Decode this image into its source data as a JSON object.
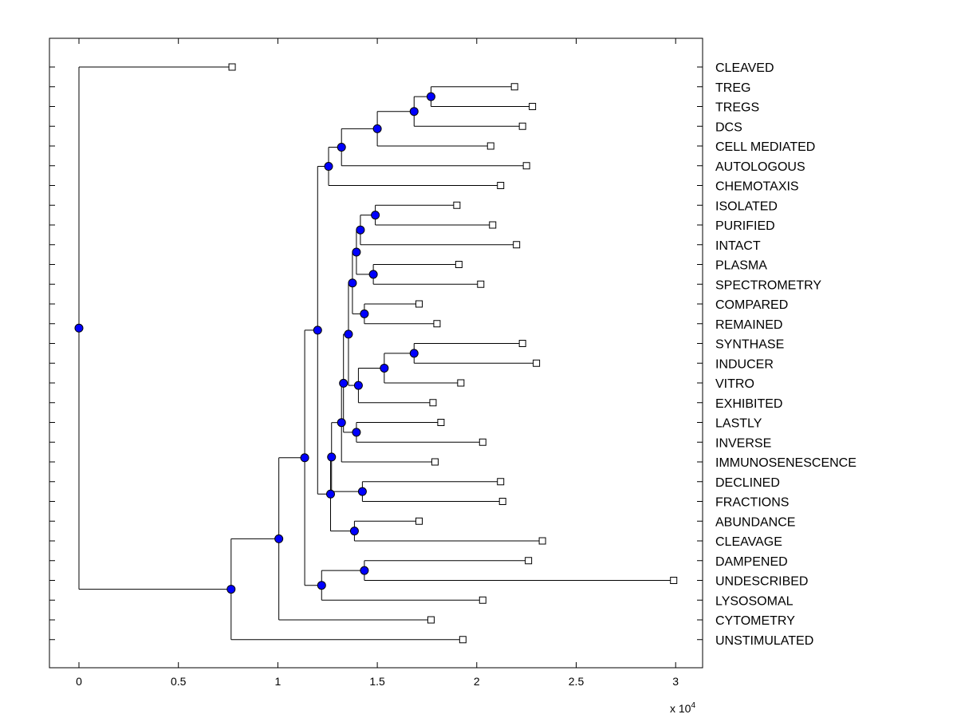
{
  "chart_data": {
    "type": "dendrogram",
    "title": "",
    "xlabel": "",
    "ylabel": "",
    "x_exponent_label": "x 10",
    "x_exponent_power": "4",
    "xlim": [
      -0.15,
      3.15
    ],
    "xticks": [
      0,
      0.5,
      1,
      1.5,
      2,
      2.5,
      3
    ],
    "xtick_labels": [
      "0",
      "0.5",
      "1",
      "1.5",
      "2",
      "2.5",
      "3"
    ],
    "colors": {
      "node": "#0000ff",
      "leaf_fill": "#ffffff",
      "line": "#000000"
    },
    "leaves": [
      {
        "label": "CLEAVED",
        "x": 0.77
      },
      {
        "label": "TREG",
        "x": 2.19
      },
      {
        "label": "TREGS",
        "x": 2.28
      },
      {
        "label": "DCS",
        "x": 2.23
      },
      {
        "label": "CELL MEDIATED",
        "x": 2.07
      },
      {
        "label": "AUTOLOGOUS",
        "x": 2.25
      },
      {
        "label": "CHEMOTAXIS",
        "x": 2.12
      },
      {
        "label": "ISOLATED",
        "x": 1.9
      },
      {
        "label": "PURIFIED",
        "x": 2.08
      },
      {
        "label": "INTACT",
        "x": 2.2
      },
      {
        "label": "PLASMA",
        "x": 1.91
      },
      {
        "label": "SPECTROMETRY",
        "x": 2.02
      },
      {
        "label": "COMPARED",
        "x": 1.71
      },
      {
        "label": "REMAINED",
        "x": 1.8
      },
      {
        "label": "SYNTHASE",
        "x": 2.23
      },
      {
        "label": "INDUCER",
        "x": 2.3
      },
      {
        "label": "VITRO",
        "x": 1.92
      },
      {
        "label": "EXHIBITED",
        "x": 1.78
      },
      {
        "label": "LASTLY",
        "x": 1.82
      },
      {
        "label": "INVERSE",
        "x": 2.03
      },
      {
        "label": "IMMUNOSENESCENCE",
        "x": 1.79
      },
      {
        "label": "DECLINED",
        "x": 2.12
      },
      {
        "label": "FRACTIONS",
        "x": 2.13
      },
      {
        "label": "ABUNDANCE",
        "x": 1.71
      },
      {
        "label": "CLEAVAGE",
        "x": 2.33
      },
      {
        "label": "DAMPENED",
        "x": 2.26
      },
      {
        "label": "UNDESCRIBED",
        "x": 2.99
      },
      {
        "label": "LYSOSOMAL",
        "x": 2.03
      },
      {
        "label": "CYTOMETRY",
        "x": 1.77
      },
      {
        "label": "UNSTIMULATED",
        "x": 1.93
      }
    ],
    "merges": [
      {
        "id": "n1",
        "x": 1.77,
        "children": [
          "L1",
          "L2"
        ]
      },
      {
        "id": "n2",
        "x": 1.685,
        "children": [
          "n1",
          "L3"
        ]
      },
      {
        "id": "n3",
        "x": 1.5,
        "children": [
          "n2",
          "L4"
        ]
      },
      {
        "id": "n4",
        "x": 1.32,
        "children": [
          "n3",
          "L5"
        ]
      },
      {
        "id": "n5",
        "x": 1.255,
        "children": [
          "n4",
          "L6"
        ]
      },
      {
        "id": "n6",
        "x": 1.49,
        "children": [
          "L7",
          "L8"
        ]
      },
      {
        "id": "n7",
        "x": 1.415,
        "children": [
          "n6",
          "L9"
        ]
      },
      {
        "id": "n8",
        "x": 1.48,
        "children": [
          "L10",
          "L11"
        ]
      },
      {
        "id": "n9",
        "x": 1.395,
        "children": [
          "n7",
          "n8"
        ]
      },
      {
        "id": "n10",
        "x": 1.435,
        "children": [
          "L12",
          "L13"
        ]
      },
      {
        "id": "n11",
        "x": 1.375,
        "children": [
          "n9",
          "n10"
        ]
      },
      {
        "id": "n12",
        "x": 1.685,
        "children": [
          "L14",
          "L15"
        ]
      },
      {
        "id": "n13",
        "x": 1.535,
        "children": [
          "n12",
          "L16"
        ]
      },
      {
        "id": "n14",
        "x": 1.405,
        "children": [
          "n13",
          "L17"
        ]
      },
      {
        "id": "n15",
        "x": 1.355,
        "children": [
          "n11",
          "n14"
        ]
      },
      {
        "id": "n16",
        "x": 1.395,
        "children": [
          "L18",
          "L19"
        ]
      },
      {
        "id": "n17",
        "x": 1.33,
        "children": [
          "n15",
          "n16"
        ]
      },
      {
        "id": "n18",
        "x": 1.32,
        "children": [
          "n17",
          "L20"
        ]
      },
      {
        "id": "n19",
        "x": 1.425,
        "children": [
          "L21",
          "L22"
        ]
      },
      {
        "id": "n20",
        "x": 1.27,
        "children": [
          "n18",
          "n19"
        ]
      },
      {
        "id": "n21",
        "x": 1.385,
        "children": [
          "L23",
          "L24"
        ]
      },
      {
        "id": "n22",
        "x": 1.265,
        "children": [
          "n20",
          "n21"
        ]
      },
      {
        "id": "n23",
        "x": 1.2,
        "children": [
          "n5",
          "n22"
        ]
      },
      {
        "id": "n24",
        "x": 1.435,
        "children": [
          "L25",
          "L26"
        ]
      },
      {
        "id": "n25",
        "x": 1.22,
        "children": [
          "n24",
          "L27"
        ]
      },
      {
        "id": "n26",
        "x": 1.135,
        "children": [
          "n23",
          "n25"
        ]
      },
      {
        "id": "n27",
        "x": 1.005,
        "children": [
          "n26",
          "L28"
        ]
      },
      {
        "id": "n28",
        "x": 0.765,
        "children": [
          "n27",
          "L29"
        ]
      },
      {
        "id": "n29",
        "x": 0.0,
        "children": [
          "L0",
          "n28"
        ]
      }
    ]
  }
}
